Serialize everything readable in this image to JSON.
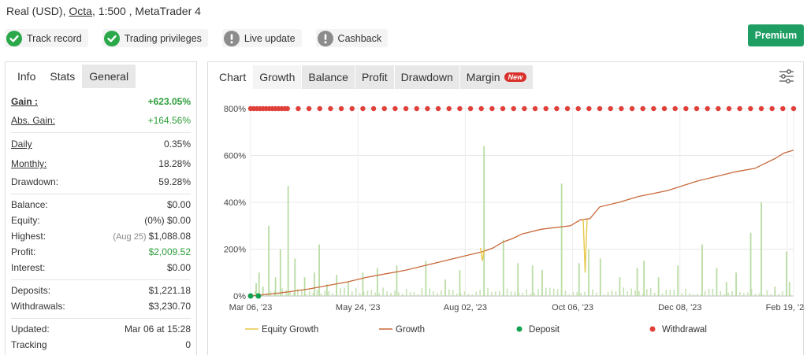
{
  "account": {
    "type_currency": "Real (USD),",
    "broker": "Octa",
    "leverage_platform": ", 1:500 , MetaTrader 4"
  },
  "badges": [
    {
      "label": "Track record",
      "status": "ok",
      "icon": "check-circle-icon"
    },
    {
      "label": "Trading privileges",
      "status": "ok",
      "icon": "check-circle-icon"
    },
    {
      "label": "Live update",
      "status": "warn",
      "icon": "exclamation-circle-icon"
    },
    {
      "label": "Cashback",
      "status": "warn",
      "icon": "exclamation-circle-icon"
    }
  ],
  "premium_label": "Premium",
  "colors": {
    "green": "#1e9e62",
    "check": "#2aa84a",
    "warn": "#8c8c8c",
    "growth": "#c8693a",
    "equity": "#e6c84a",
    "bar": "#b9dca4",
    "deposit": "#12a150",
    "withdrawal": "#e0403a"
  },
  "stats_tabs": [
    "Info",
    "Stats",
    "General"
  ],
  "stats": {
    "gain_label": "Gain :",
    "gain_value": "+623.05%",
    "abs_gain_label": "Abs. Gain:",
    "abs_gain_value": "+164.56%",
    "daily_label": "Daily",
    "daily_value": "0.35%",
    "monthly_label": "Monthly:",
    "monthly_value": "18.28%",
    "drawdown_label": "Drawdown:",
    "drawdown_value": "59.28%",
    "balance_label": "Balance:",
    "balance_value": "$0.00",
    "equity_label": "Equity:",
    "equity_pct": "(0%)",
    "equity_value": "$0.00",
    "highest_label": "Highest:",
    "highest_date": "(Aug 25)",
    "highest_value": "$1,088.08",
    "profit_label": "Profit:",
    "profit_value": "$2,009.52",
    "interest_label": "Interest:",
    "interest_value": "$0.00",
    "deposits_label": "Deposits:",
    "deposits_value": "$1,221.18",
    "withdrawals_label": "Withdrawals:",
    "withdrawals_value": "$3,230.70",
    "updated_label": "Updated:",
    "updated_value": "Mar 06 at 15:28",
    "tracking_label": "Tracking",
    "tracking_value": "0"
  },
  "chart_tabs": [
    {
      "label": "Chart"
    },
    {
      "label": "Growth"
    },
    {
      "label": "Balance"
    },
    {
      "label": "Profit"
    },
    {
      "label": "Drawdown"
    },
    {
      "label": "Margin",
      "badge": "New"
    }
  ],
  "chart_data": {
    "type": "line",
    "y_ticks": [
      "0%",
      "200%",
      "400%",
      "600%",
      "800%"
    ],
    "ylim": [
      0,
      800
    ],
    "x_ticks": [
      "Mar 06, '23",
      "May 24, '23",
      "Aug 02, '23",
      "Oct 06, '23",
      "Dec 08, '23",
      "Feb 19, '24"
    ],
    "legend": [
      "Equity Growth",
      "Growth",
      "Deposit",
      "Withdrawal"
    ],
    "growth_series": [
      [
        0,
        0
      ],
      [
        20,
        8
      ],
      [
        40,
        18
      ],
      [
        60,
        30
      ],
      [
        80,
        45
      ],
      [
        100,
        60
      ],
      [
        120,
        80
      ],
      [
        140,
        95
      ],
      [
        160,
        110
      ],
      [
        180,
        130
      ],
      [
        200,
        150
      ],
      [
        220,
        170
      ],
      [
        240,
        190
      ],
      [
        250,
        205
      ],
      [
        260,
        230
      ],
      [
        270,
        245
      ],
      [
        280,
        265
      ],
      [
        300,
        285
      ],
      [
        330,
        300
      ],
      [
        340,
        325
      ],
      [
        350,
        330
      ],
      [
        360,
        380
      ],
      [
        380,
        400
      ],
      [
        400,
        425
      ],
      [
        430,
        450
      ],
      [
        460,
        490
      ],
      [
        480,
        510
      ],
      [
        500,
        530
      ],
      [
        520,
        545
      ],
      [
        530,
        565
      ],
      [
        540,
        585
      ],
      [
        550,
        610
      ],
      [
        560,
        623
      ]
    ],
    "equity_dips": [
      [
        239,
        205,
        150
      ],
      [
        345,
        330,
        100
      ]
    ],
    "bar_spikes": [
      [
        5,
        55
      ],
      [
        8,
        100
      ],
      [
        12,
        40
      ],
      [
        18,
        300
      ],
      [
        25,
        80
      ],
      [
        30,
        200
      ],
      [
        38,
        470
      ],
      [
        45,
        160
      ],
      [
        55,
        80
      ],
      [
        65,
        100
      ],
      [
        70,
        220
      ],
      [
        78,
        50
      ],
      [
        88,
        90
      ],
      [
        100,
        60
      ],
      [
        115,
        100
      ],
      [
        130,
        120
      ],
      [
        150,
        130
      ],
      [
        180,
        150
      ],
      [
        200,
        70
      ],
      [
        215,
        110
      ],
      [
        240,
        640
      ],
      [
        260,
        240
      ],
      [
        275,
        140
      ],
      [
        290,
        130
      ],
      [
        300,
        110
      ],
      [
        320,
        480
      ],
      [
        338,
        140
      ],
      [
        348,
        200
      ],
      [
        360,
        160
      ],
      [
        380,
        80
      ],
      [
        398,
        120
      ],
      [
        405,
        150
      ],
      [
        420,
        80
      ],
      [
        440,
        130
      ],
      [
        465,
        220
      ],
      [
        480,
        120
      ],
      [
        490,
        60
      ],
      [
        500,
        100
      ],
      [
        515,
        270
      ],
      [
        526,
        400
      ],
      [
        540,
        40
      ],
      [
        552,
        190
      ],
      [
        555,
        60
      ]
    ],
    "deposit_x": [
      0,
      8
    ],
    "withdrawal_count": 60
  }
}
